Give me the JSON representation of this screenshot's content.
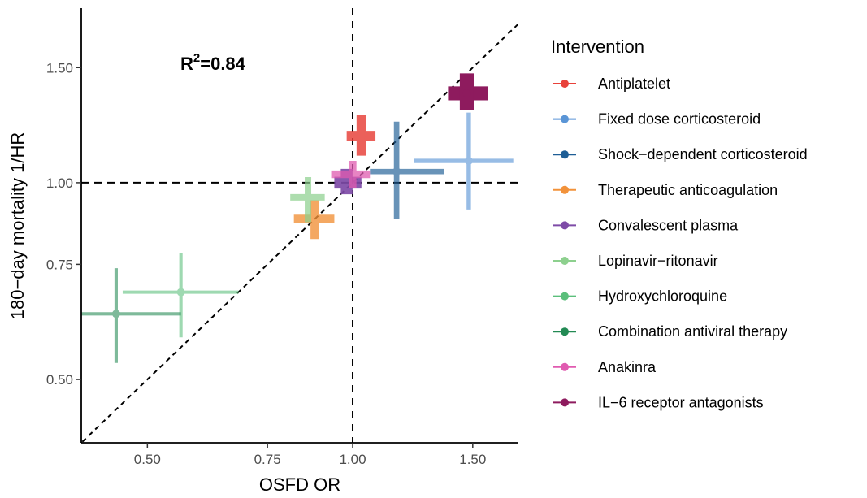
{
  "chart_data": {
    "type": "scatter",
    "xlabel": "OSFD OR",
    "ylabel": "180−day mortality 1/HR",
    "x_scale": "log",
    "y_scale": "log",
    "xlim": [
      0.4,
      1.75
    ],
    "ylim": [
      0.4,
      1.85
    ],
    "xticks": [
      0.5,
      0.75,
      1.0,
      1.5
    ],
    "xtick_labels": [
      "0.50",
      "0.75",
      "1.00",
      "1.50"
    ],
    "yticks": [
      0.5,
      0.75,
      1.0,
      1.5
    ],
    "ytick_labels": [
      "0.50",
      "0.75",
      "1.00",
      "1.50"
    ],
    "reference_lines": {
      "vertical_x": 1.0,
      "horizontal_y": 1.0,
      "identity": true
    },
    "annotation": {
      "base": "R",
      "sup": "2",
      "rest": "=0.84"
    },
    "legend_title": "Intervention",
    "legend_position": "right",
    "series": [
      {
        "name": "Antiplatelet",
        "color": "#e8413a",
        "x": 1.03,
        "y": 1.18,
        "x_lo": 0.98,
        "x_hi": 1.08,
        "y_lo": 1.1,
        "y_hi": 1.27,
        "weight": 8
      },
      {
        "name": "Fixed dose corticosteroid",
        "color": "#5a95d6",
        "x": 1.48,
        "y": 1.08,
        "x_lo": 1.23,
        "x_hi": 1.72,
        "y_lo": 0.91,
        "y_hi": 1.28,
        "weight": 3
      },
      {
        "name": "Shock−dependent corticosteroid",
        "color": "#1e5e96",
        "x": 1.16,
        "y": 1.04,
        "x_lo": 1.06,
        "x_hi": 1.36,
        "y_lo": 0.88,
        "y_hi": 1.24,
        "weight": 4
      },
      {
        "name": "Therapeutic anticoagulation",
        "color": "#f2923a",
        "x": 0.88,
        "y": 0.88,
        "x_lo": 0.82,
        "x_hi": 0.94,
        "y_lo": 0.82,
        "y_hi": 0.94,
        "weight": 7
      },
      {
        "name": "Convalescent plasma",
        "color": "#7e4ba7",
        "x": 0.98,
        "y": 1.0,
        "x_lo": 0.94,
        "x_hi": 1.03,
        "y_lo": 0.96,
        "y_hi": 1.05,
        "weight": 10
      },
      {
        "name": "Lopinavir−ritonavir",
        "color": "#8dd08e",
        "x": 0.86,
        "y": 0.95,
        "x_lo": 0.81,
        "x_hi": 0.91,
        "y_lo": 0.87,
        "y_hi": 1.02,
        "weight": 5
      },
      {
        "name": "Hydroxychloroquine",
        "color": "#5bbf7b",
        "x": 0.56,
        "y": 0.68,
        "x_lo": 0.46,
        "x_hi": 0.68,
        "y_lo": 0.58,
        "y_hi": 0.78,
        "weight": 2
      },
      {
        "name": "Combination antiviral therapy",
        "color": "#238a54",
        "x": 0.45,
        "y": 0.63,
        "x_lo": 0.35,
        "x_hi": 0.56,
        "y_lo": 0.53,
        "y_hi": 0.74,
        "weight": 2
      },
      {
        "name": "Anakinra",
        "color": "#e05bb0",
        "x": 1.0,
        "y": 1.03,
        "x_lo": 0.93,
        "x_hi": 1.06,
        "y_lo": 0.98,
        "y_hi": 1.08,
        "weight": 6
      },
      {
        "name": "IL−6 receptor antagonists",
        "color": "#8e1b5e",
        "x": 1.47,
        "y": 1.37,
        "x_lo": 1.38,
        "x_hi": 1.58,
        "y_lo": 1.29,
        "y_hi": 1.47,
        "weight": 12
      }
    ]
  }
}
